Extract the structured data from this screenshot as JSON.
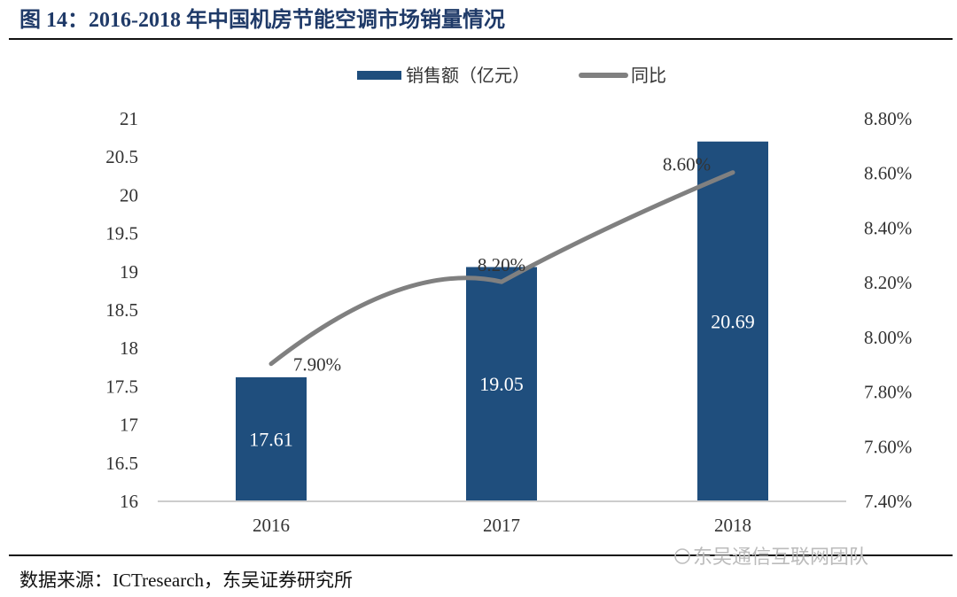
{
  "title": "图 14：2016-2018 年中国机房节能空调市场销量情况",
  "source": "数据来源：ICTresearch，东吴证券研究所",
  "watermark": "东吴通信互联网团队",
  "colors": {
    "title": "#1f3a68",
    "bar": "#1f4e7d",
    "line": "#808080"
  },
  "chart_data": {
    "type": "bar+line",
    "categories": [
      "2016",
      "2017",
      "2018"
    ],
    "series": [
      {
        "name": "销售额（亿元）",
        "type": "bar",
        "axis": "left",
        "values": [
          17.61,
          19.05,
          20.69
        ],
        "labels": [
          "17.61",
          "19.05",
          "20.69"
        ]
      },
      {
        "name": "同比",
        "type": "line",
        "axis": "right",
        "values": [
          7.9,
          8.2,
          8.6
        ],
        "labels": [
          "7.90%",
          "8.20%",
          "8.60%"
        ]
      }
    ],
    "left_axis": {
      "ylim": [
        16,
        21
      ],
      "ticks": [
        "16",
        "16.5",
        "17",
        "17.5",
        "18",
        "18.5",
        "19",
        "19.5",
        "20",
        "20.5",
        "21"
      ]
    },
    "right_axis": {
      "ylim": [
        7.4,
        8.8
      ],
      "ticks": [
        "7.40%",
        "7.60%",
        "7.80%",
        "8.00%",
        "8.20%",
        "8.40%",
        "8.60%",
        "8.80%"
      ]
    },
    "legend": "top",
    "grid": false
  }
}
